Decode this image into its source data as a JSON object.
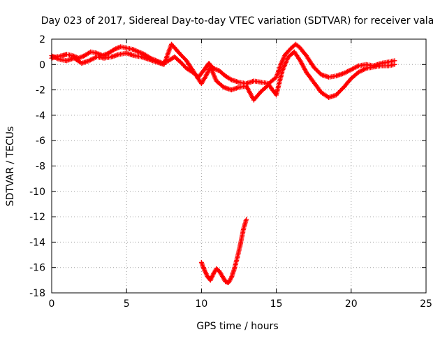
{
  "chart_data": {
    "type": "scatter",
    "title": "Day 023 of 2017, Sidereal Day-to-day VTEC variation (SDTVAR) for receiver vala",
    "xlabel": "GPS time / hours",
    "ylabel": "SDTVAR / TECUs",
    "xlim": [
      0,
      25
    ],
    "ylim": [
      -18,
      2
    ],
    "x_ticks": [
      0,
      5,
      10,
      15,
      20,
      25
    ],
    "y_ticks": [
      2,
      0,
      -2,
      -4,
      -6,
      -8,
      -10,
      -12,
      -14,
      -16,
      -18
    ],
    "grid": true,
    "legend": "none",
    "marker": "+",
    "series": [
      {
        "name": "satellite arc (upper band)",
        "color": "#ff0000",
        "points": [
          [
            0.0,
            0.5
          ],
          [
            0.3,
            0.6
          ],
          [
            0.7,
            0.7
          ],
          [
            1.0,
            0.8
          ],
          [
            1.4,
            0.7
          ],
          [
            1.8,
            0.5
          ],
          [
            2.2,
            0.7
          ],
          [
            2.6,
            1.0
          ],
          [
            3.0,
            0.9
          ],
          [
            3.4,
            0.7
          ],
          [
            3.8,
            0.9
          ],
          [
            4.2,
            1.2
          ],
          [
            4.6,
            1.4
          ],
          [
            5.0,
            1.3
          ],
          [
            5.4,
            1.2
          ],
          [
            5.8,
            1.0
          ],
          [
            6.2,
            0.8
          ],
          [
            6.6,
            0.5
          ],
          [
            7.0,
            0.3
          ],
          [
            7.4,
            0.1
          ],
          [
            7.8,
            0.3
          ],
          [
            8.2,
            0.6
          ],
          [
            8.6,
            0.2
          ],
          [
            9.0,
            -0.3
          ],
          [
            9.4,
            -0.6
          ],
          [
            9.8,
            -1.0
          ],
          [
            10.2,
            -0.4
          ],
          [
            10.5,
            0.1
          ],
          [
            10.8,
            -0.3
          ],
          [
            11.2,
            -0.5
          ],
          [
            11.6,
            -0.9
          ],
          [
            12.0,
            -1.2
          ],
          [
            12.5,
            -1.4
          ],
          [
            13.0,
            -1.5
          ],
          [
            13.5,
            -1.3
          ],
          [
            14.0,
            -1.4
          ],
          [
            14.5,
            -1.5
          ],
          [
            15.0,
            -1.0
          ],
          [
            15.3,
            0.0
          ],
          [
            15.6,
            0.8
          ],
          [
            16.0,
            1.3
          ],
          [
            16.3,
            1.6
          ],
          [
            16.6,
            1.3
          ],
          [
            17.0,
            0.7
          ],
          [
            17.5,
            -0.2
          ],
          [
            18.0,
            -0.8
          ],
          [
            18.5,
            -1.0
          ],
          [
            19.0,
            -0.9
          ],
          [
            19.5,
            -0.7
          ],
          [
            20.0,
            -0.4
          ],
          [
            20.5,
            -0.1
          ],
          [
            21.0,
            0.0
          ],
          [
            21.5,
            -0.1
          ],
          [
            22.0,
            0.1
          ],
          [
            22.5,
            0.2
          ],
          [
            22.9,
            0.3
          ]
        ]
      },
      {
        "name": "satellite arc (lower band)",
        "color": "#ff0000",
        "points": [
          [
            0.0,
            0.7
          ],
          [
            0.5,
            0.4
          ],
          [
            1.0,
            0.3
          ],
          [
            1.5,
            0.5
          ],
          [
            2.0,
            0.1
          ],
          [
            2.5,
            0.3
          ],
          [
            3.0,
            0.6
          ],
          [
            3.5,
            0.5
          ],
          [
            4.0,
            0.6
          ],
          [
            4.5,
            0.8
          ],
          [
            5.0,
            0.9
          ],
          [
            5.5,
            0.7
          ],
          [
            6.0,
            0.6
          ],
          [
            6.5,
            0.4
          ],
          [
            7.0,
            0.2
          ],
          [
            7.5,
            0.0
          ],
          [
            8.0,
            1.6
          ],
          [
            8.3,
            1.2
          ],
          [
            8.6,
            0.8
          ],
          [
            9.0,
            0.3
          ],
          [
            9.5,
            -0.6
          ],
          [
            10.0,
            -1.5
          ],
          [
            10.3,
            -0.9
          ],
          [
            10.6,
            -0.2
          ],
          [
            11.0,
            -1.3
          ],
          [
            11.5,
            -1.8
          ],
          [
            12.0,
            -2.0
          ],
          [
            12.5,
            -1.8
          ],
          [
            13.0,
            -1.7
          ],
          [
            13.5,
            -2.8
          ],
          [
            14.0,
            -2.1
          ],
          [
            14.5,
            -1.6
          ],
          [
            15.0,
            -2.4
          ],
          [
            15.4,
            -0.5
          ],
          [
            15.8,
            0.6
          ],
          [
            16.2,
            1.0
          ],
          [
            16.6,
            0.3
          ],
          [
            17.0,
            -0.6
          ],
          [
            17.5,
            -1.4
          ],
          [
            18.0,
            -2.2
          ],
          [
            18.5,
            -2.6
          ],
          [
            19.0,
            -2.4
          ],
          [
            19.5,
            -1.8
          ],
          [
            20.0,
            -1.1
          ],
          [
            20.5,
            -0.6
          ],
          [
            21.0,
            -0.3
          ],
          [
            21.5,
            -0.2
          ],
          [
            22.0,
            -0.1
          ],
          [
            22.5,
            -0.1
          ],
          [
            22.9,
            0.0
          ]
        ]
      },
      {
        "name": "satellite arc (deep excursion)",
        "color": "#ff0000",
        "points": [
          [
            10.0,
            -15.6
          ],
          [
            10.2,
            -16.2
          ],
          [
            10.4,
            -16.7
          ],
          [
            10.6,
            -17.0
          ],
          [
            10.8,
            -16.5
          ],
          [
            11.0,
            -16.1
          ],
          [
            11.2,
            -16.3
          ],
          [
            11.4,
            -16.7
          ],
          [
            11.6,
            -17.1
          ],
          [
            11.8,
            -17.2
          ],
          [
            12.0,
            -16.8
          ],
          [
            12.2,
            -16.1
          ],
          [
            12.4,
            -15.2
          ],
          [
            12.6,
            -14.2
          ],
          [
            12.8,
            -13.0
          ],
          [
            13.0,
            -12.2
          ]
        ]
      }
    ]
  }
}
